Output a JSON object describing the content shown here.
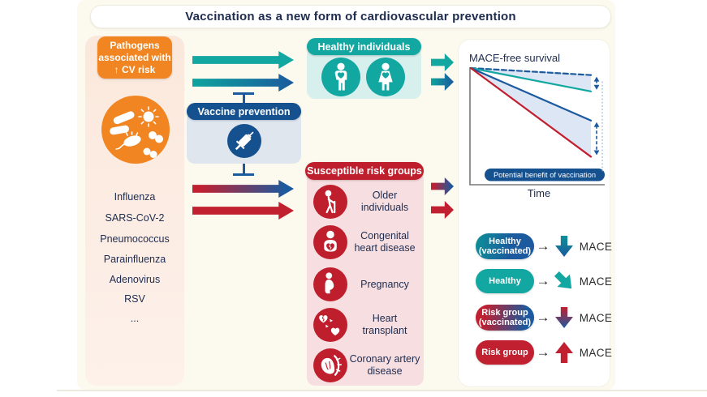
{
  "title": "Vaccination as a new form of cardiovascular prevention",
  "pathogens": {
    "header": "Pathogens associated with ↑ CV risk",
    "list": [
      "Influenza",
      "SARS-CoV-2",
      "Pneumococcus",
      "Parainfluenza",
      "Adenovirus",
      "RSV",
      "..."
    ]
  },
  "vaccine_prevention": {
    "label": "Vaccine prevention",
    "icon": "syringe-icon"
  },
  "healthy_individuals": {
    "header": "Healthy individuals"
  },
  "risk_groups": {
    "header": "Susceptible risk groups",
    "items": [
      {
        "label": "Older individuals",
        "icon": "older-person-icon"
      },
      {
        "label": "Congenital heart disease",
        "icon": "baby-broken-heart-icon"
      },
      {
        "label": "Pregnancy",
        "icon": "pregnant-woman-icon"
      },
      {
        "label": "Heart transplant",
        "icon": "heart-transplant-icon"
      },
      {
        "label": "Coronary artery disease",
        "icon": "coronary-artery-icon"
      }
    ]
  },
  "chart_data": {
    "type": "line",
    "title": "",
    "ylabel": "MACE-free survival",
    "xlabel": "Time",
    "x": [
      0,
      1
    ],
    "y_range": [
      0,
      100
    ],
    "grid": false,
    "legend_position": "none",
    "series": [
      {
        "name": "Healthy (vaccinated)",
        "values": [
          100,
          94
        ],
        "color": "#1b5a9e",
        "style": "dashed"
      },
      {
        "name": "Healthy",
        "values": [
          100,
          80
        ],
        "color": "#13a7a2",
        "style": "solid"
      },
      {
        "name": "Risk group (vaccinated)",
        "values": [
          100,
          55
        ],
        "color": "#1b5a9e",
        "style": "solid"
      },
      {
        "name": "Risk group",
        "values": [
          100,
          24
        ],
        "color": "#c02030",
        "style": "solid"
      }
    ],
    "benefit_bands": [
      [
        0,
        1
      ],
      [
        2,
        3
      ]
    ],
    "band_color": "#dce6f4",
    "annotation": "Potential benefit of vaccination"
  },
  "legend": {
    "rows": [
      {
        "label": "Healthy (vaccinated)",
        "pill_style": "teal-blue-gradient",
        "arrow": "down",
        "outcome": "MACE"
      },
      {
        "label": "Healthy",
        "pill_style": "teal",
        "arrow": "down-right",
        "outcome": "MACE"
      },
      {
        "label": "Risk group (vaccinated)",
        "pill_style": "red-blue-gradient",
        "arrow": "down",
        "outcome": "MACE"
      },
      {
        "label": "Risk group",
        "pill_style": "red",
        "arrow": "up",
        "outcome": "MACE"
      }
    ]
  },
  "colors": {
    "teal": "#13a7a2",
    "dark_blue": "#1b5a9e",
    "navy_pill": "#15508f",
    "red": "#c02030",
    "orange": "#f08522",
    "navy_text": "#1d2b4f",
    "cream_bg": "#fcf9ee",
    "pathogen_panel_pink": "#fbe8dc",
    "risk_panel_pink": "#f7dfe1",
    "healthy_panel_teal": "#d7efed",
    "vaccine_panel_blue": "#dfe6ee",
    "band_blue": "#dce6f4"
  }
}
